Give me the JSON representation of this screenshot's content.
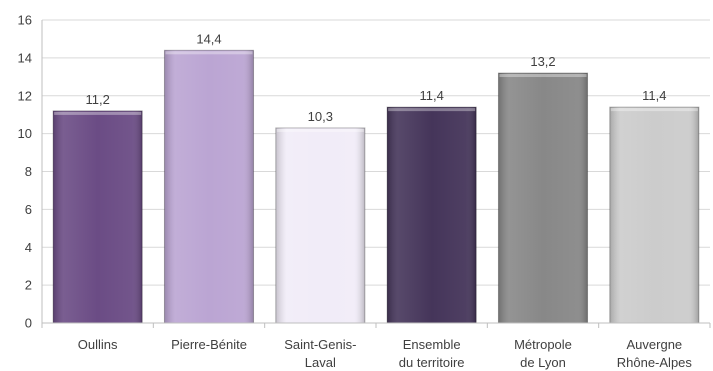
{
  "chart_data": {
    "type": "bar",
    "categories": [
      [
        "Oullins"
      ],
      [
        "Pierre-Bénite"
      ],
      [
        "Saint-Genis-",
        "Laval"
      ],
      [
        "Ensemble",
        "du territoire"
      ],
      [
        "Métropole",
        "de Lyon"
      ],
      [
        "Auvergne",
        "Rhône-Alpes"
      ]
    ],
    "values": [
      11.2,
      14.4,
      10.3,
      11.4,
      13.2,
      11.4
    ],
    "value_labels": [
      "11,2",
      "14,4",
      "10,3",
      "11,4",
      "13,2",
      "11,4"
    ],
    "colors": [
      "#6b4c85",
      "#bba5d3",
      "#f1ecf8",
      "#45355a",
      "#888888",
      "#cccccc"
    ],
    "ylim": [
      0,
      16
    ],
    "yticks": [
      0,
      2,
      4,
      6,
      8,
      10,
      12,
      14,
      16
    ],
    "grid": true,
    "title": "",
    "xlabel": "",
    "ylabel": ""
  }
}
